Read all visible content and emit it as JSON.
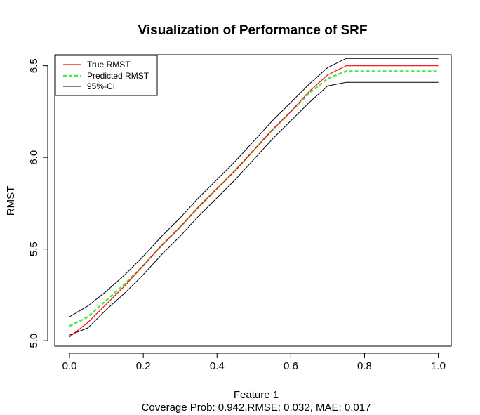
{
  "chart_data": {
    "type": "line",
    "title": "Visualization of Performance of SRF",
    "xlabel": "Feature 1",
    "ylabel": "RMST",
    "subtitle": "Coverage Prob: 0.942,RMSE: 0.032, MAE: 0.017",
    "xlim": [
      -0.04,
      1.035
    ],
    "ylim": [
      4.97,
      6.56
    ],
    "x_ticks": [
      0.0,
      0.2,
      0.4,
      0.6,
      0.8,
      1.0
    ],
    "x_tick_labels": [
      "0.0",
      "0.2",
      "0.4",
      "0.6",
      "0.8",
      "1.0"
    ],
    "y_ticks": [
      5.0,
      5.5,
      6.0,
      6.5
    ],
    "y_tick_labels": [
      "5.0",
      "5.5",
      "6.0",
      "6.5"
    ],
    "grid": false,
    "legend_position": "top-left",
    "series": [
      {
        "name": "True RMST",
        "color": "#ff0000",
        "style": "solid",
        "x": [
          0.0,
          0.05,
          0.1,
          0.15,
          0.2,
          0.25,
          0.3,
          0.35,
          0.4,
          0.45,
          0.5,
          0.55,
          0.6,
          0.65,
          0.7,
          0.75,
          0.8,
          0.85,
          0.9,
          0.95,
          1.0
        ],
        "values": [
          5.02,
          5.1,
          5.2,
          5.3,
          5.41,
          5.52,
          5.62,
          5.73,
          5.83,
          5.93,
          6.04,
          6.15,
          6.25,
          6.36,
          6.45,
          6.5,
          6.5,
          6.5,
          6.5,
          6.5,
          6.5
        ]
      },
      {
        "name": "Predicted RMST",
        "color": "#44ee44",
        "style": "dashed",
        "x": [
          0.0,
          0.05,
          0.1,
          0.15,
          0.2,
          0.25,
          0.3,
          0.35,
          0.4,
          0.45,
          0.5,
          0.55,
          0.6,
          0.65,
          0.7,
          0.75,
          0.8,
          0.85,
          0.9,
          0.95,
          1.0
        ],
        "values": [
          5.08,
          5.13,
          5.22,
          5.31,
          5.41,
          5.52,
          5.62,
          5.73,
          5.83,
          5.93,
          6.04,
          6.15,
          6.25,
          6.35,
          6.43,
          6.47,
          6.47,
          6.47,
          6.47,
          6.47,
          6.47
        ]
      },
      {
        "name": "95%-CI",
        "color": "#000000",
        "style": "solid",
        "x": [
          0.0,
          0.05,
          0.1,
          0.15,
          0.2,
          0.25,
          0.3,
          0.35,
          0.4,
          0.45,
          0.5,
          0.55,
          0.6,
          0.65,
          0.7,
          0.75,
          0.8,
          0.85,
          0.9,
          0.95,
          1.0
        ],
        "values": [
          5.13,
          5.19,
          5.27,
          5.36,
          5.46,
          5.57,
          5.67,
          5.78,
          5.88,
          5.98,
          6.09,
          6.2,
          6.3,
          6.4,
          6.49,
          6.54,
          6.54,
          6.54,
          6.54,
          6.54,
          6.54
        ],
        "lower": [
          5.03,
          5.07,
          5.17,
          5.26,
          5.36,
          5.47,
          5.57,
          5.68,
          5.78,
          5.88,
          5.99,
          6.1,
          6.2,
          6.3,
          6.39,
          6.41,
          6.41,
          6.41,
          6.41,
          6.41,
          6.41
        ]
      }
    ]
  }
}
